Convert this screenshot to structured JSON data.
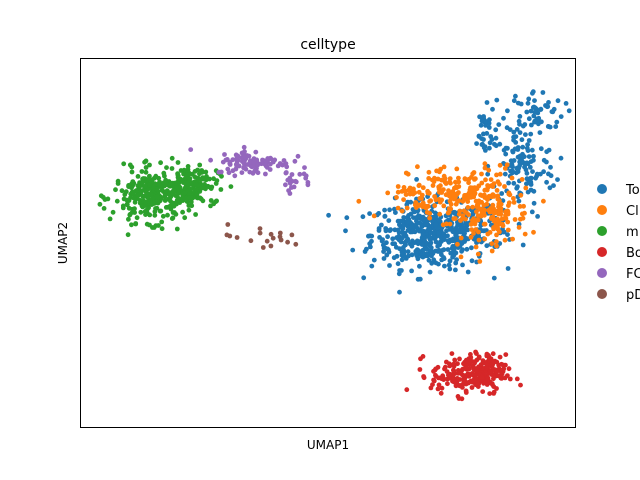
{
  "chart_data": {
    "type": "scatter",
    "title": "celltype",
    "xlabel": "UMAP1",
    "ylabel": "UMAP2",
    "xlim": [
      -2,
      22
    ],
    "ylim": [
      -2,
      22
    ],
    "grid": false,
    "legend_position": "right",
    "series": [
      {
        "name": "To",
        "color": "#1f77b4",
        "n": 760,
        "clusters": [
          {
            "cx": 14.9,
            "cy": 10.5,
            "sx": 1.4,
            "sy": 1.1,
            "w": 0.62
          },
          {
            "cx": 17.3,
            "cy": 11.1,
            "sx": 0.9,
            "sy": 0.75,
            "w": 0.1
          },
          {
            "cx": 19.4,
            "cy": 14.9,
            "sx": 0.8,
            "sy": 1.3,
            "w": 0.16
          },
          {
            "cx": 20.0,
            "cy": 18.5,
            "sx": 0.7,
            "sy": 0.7,
            "w": 0.08
          },
          {
            "cx": 17.5,
            "cy": 17.0,
            "sx": 0.3,
            "sy": 0.9,
            "w": 0.04
          }
        ]
      },
      {
        "name": "Cl",
        "color": "#ff7f0e",
        "n": 330,
        "clusters": [
          {
            "cx": 16.5,
            "cy": 13.2,
            "sx": 1.3,
            "sy": 0.9,
            "w": 0.55
          },
          {
            "cx": 17.8,
            "cy": 11.6,
            "sx": 1.0,
            "sy": 0.9,
            "w": 0.35
          },
          {
            "cx": 14.5,
            "cy": 12.6,
            "sx": 0.8,
            "sy": 0.5,
            "w": 0.1
          }
        ]
      },
      {
        "name": "m",
        "color": "#2ca02c",
        "n": 430,
        "clusters": [
          {
            "cx": 1.6,
            "cy": 13.0,
            "sx": 1.0,
            "sy": 0.85,
            "w": 0.7
          },
          {
            "cx": 3.3,
            "cy": 13.8,
            "sx": 0.7,
            "sy": 0.6,
            "w": 0.3
          }
        ]
      },
      {
        "name": "Bo",
        "color": "#d62728",
        "n": 260,
        "clusters": [
          {
            "cx": 16.8,
            "cy": 1.4,
            "sx": 0.9,
            "sy": 0.65,
            "w": 0.8
          },
          {
            "cx": 17.9,
            "cy": 1.9,
            "sx": 0.4,
            "sy": 0.5,
            "w": 0.2
          }
        ]
      },
      {
        "name": "FC",
        "color": "#9467bd",
        "n": 120,
        "clusters": [
          {
            "cx": 6.4,
            "cy": 15.2,
            "sx": 0.9,
            "sy": 0.4,
            "w": 0.85
          },
          {
            "cx": 8.4,
            "cy": 14.0,
            "sx": 0.4,
            "sy": 0.3,
            "w": 0.15
          }
        ]
      },
      {
        "name": "pD",
        "color": "#8c564b",
        "n": 18,
        "clusters": [
          {
            "cx": 6.7,
            "cy": 10.3,
            "sx": 1.1,
            "sy": 0.4,
            "w": 1.0
          }
        ]
      }
    ]
  }
}
